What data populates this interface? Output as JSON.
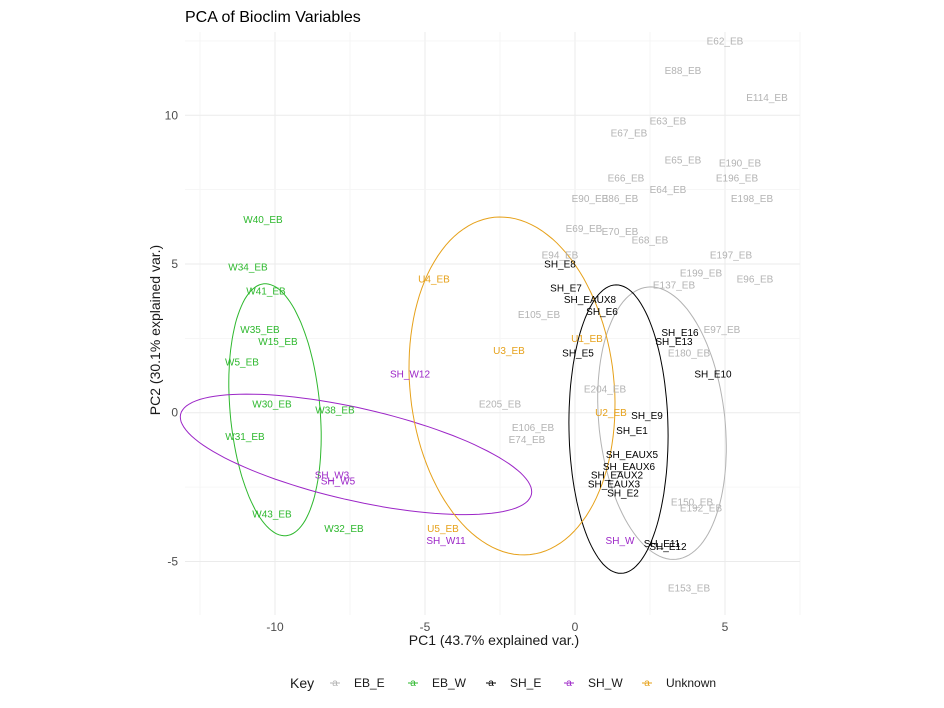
{
  "chart_data": {
    "type": "scatter",
    "title": "PCA of Bioclim Variables",
    "xlabel": "PC1 (43.7% explained var.)",
    "ylabel": "PC2 (30.1% explained var.)",
    "xlim": [
      -13,
      7.5
    ],
    "ylim": [
      -6.8,
      12.8
    ],
    "x_ticks": [
      -10,
      -5,
      0,
      5
    ],
    "y_ticks": [
      -5,
      0,
      5,
      10
    ],
    "grid": true,
    "legend": {
      "title": "Key",
      "position": "bottom",
      "entries": [
        {
          "name": "EB_E",
          "color": "#b3b3b3"
        },
        {
          "name": "EB_W",
          "color": "#2eb82e"
        },
        {
          "name": "SH_E",
          "color": "#000000"
        },
        {
          "name": "SH_W",
          "color": "#9c26c7"
        },
        {
          "name": "Unknown",
          "color": "#e6a11a"
        }
      ]
    },
    "ellipses": [
      {
        "group": "EB_E",
        "cx": 2.9,
        "cy": -0.35,
        "rx": 4.6,
        "ry": 2.1,
        "angle_deg": -84
      },
      {
        "group": "EB_W",
        "cx": -10.0,
        "cy": 0.1,
        "rx": 4.25,
        "ry": 1.5,
        "angle_deg": -85
      },
      {
        "group": "SH_E",
        "cx": 1.45,
        "cy": -0.55,
        "rx": 4.85,
        "ry": 1.65,
        "angle_deg": -89
      },
      {
        "group": "SH_W",
        "cx": -7.3,
        "cy": -1.4,
        "rx": 6.0,
        "ry": 1.55,
        "angle_deg": -13
      },
      {
        "group": "Unknown",
        "cx": -2.1,
        "cy": 0.9,
        "rx": 5.7,
        "ry": 3.4,
        "angle_deg": -84
      }
    ],
    "series": [
      {
        "name": "EB_E",
        "points": [
          {
            "label": "E62_EB",
            "x": 5.0,
            "y": 12.5
          },
          {
            "label": "E88_EB",
            "x": 3.6,
            "y": 11.5
          },
          {
            "label": "E114_EB",
            "x": 6.4,
            "y": 10.6
          },
          {
            "label": "E63_EB",
            "x": 3.1,
            "y": 9.8
          },
          {
            "label": "E67_EB",
            "x": 1.8,
            "y": 9.4
          },
          {
            "label": "E65_EB",
            "x": 3.6,
            "y": 8.5
          },
          {
            "label": "E190_EB",
            "x": 5.5,
            "y": 8.4
          },
          {
            "label": "E66_EB",
            "x": 1.7,
            "y": 7.9
          },
          {
            "label": "E196_EB",
            "x": 5.4,
            "y": 7.9
          },
          {
            "label": "E64_EB",
            "x": 3.1,
            "y": 7.5
          },
          {
            "label": "E90_EB",
            "x": 0.5,
            "y": 7.2
          },
          {
            "label": "E86_EB",
            "x": 1.5,
            "y": 7.2
          },
          {
            "label": "E198_EB",
            "x": 5.9,
            "y": 7.2
          },
          {
            "label": "E69_EB",
            "x": 0.3,
            "y": 6.2
          },
          {
            "label": "E70_EB",
            "x": 1.5,
            "y": 6.1
          },
          {
            "label": "E68_EB",
            "x": 2.5,
            "y": 5.8
          },
          {
            "label": "E94_EB",
            "x": -0.5,
            "y": 5.3
          },
          {
            "label": "E197_EB",
            "x": 5.2,
            "y": 5.3
          },
          {
            "label": "E199_EB",
            "x": 4.2,
            "y": 4.7
          },
          {
            "label": "E96_EB",
            "x": 6.0,
            "y": 4.5
          },
          {
            "label": "E137_EB",
            "x": 3.3,
            "y": 4.3
          },
          {
            "label": "E105_EB",
            "x": -1.2,
            "y": 3.3
          },
          {
            "label": "E97_EB",
            "x": 4.9,
            "y": 2.8
          },
          {
            "label": "E180_EB",
            "x": 3.8,
            "y": 2.0
          },
          {
            "label": "E204_EB",
            "x": 1.0,
            "y": 0.8
          },
          {
            "label": "E205_EB",
            "x": -2.5,
            "y": 0.3
          },
          {
            "label": "E106_EB",
            "x": -1.4,
            "y": -0.5
          },
          {
            "label": "E74_EB",
            "x": -1.6,
            "y": -0.9
          },
          {
            "label": "E150_EB",
            "x": 3.9,
            "y": -3.0
          },
          {
            "label": "E192_EB",
            "x": 4.2,
            "y": -3.2
          },
          {
            "label": "E153_EB",
            "x": 3.8,
            "y": -5.9
          }
        ]
      },
      {
        "name": "EB_W",
        "points": [
          {
            "label": "W40_EB",
            "x": -10.4,
            "y": 6.5
          },
          {
            "label": "W34_EB",
            "x": -10.9,
            "y": 4.9
          },
          {
            "label": "W41_EB",
            "x": -10.3,
            "y": 4.1
          },
          {
            "label": "W35_EB",
            "x": -10.5,
            "y": 2.8
          },
          {
            "label": "W15_EB",
            "x": -9.9,
            "y": 2.4
          },
          {
            "label": "W5_EB",
            "x": -11.1,
            "y": 1.7
          },
          {
            "label": "W38_EB",
            "x": -8.0,
            "y": 0.1
          },
          {
            "label": "W30_EB",
            "x": -10.1,
            "y": 0.3
          },
          {
            "label": "W31_EB",
            "x": -11.0,
            "y": -0.8
          },
          {
            "label": "W43_EB",
            "x": -10.1,
            "y": -3.4
          },
          {
            "label": "W32_EB",
            "x": -7.7,
            "y": -3.9
          }
        ]
      },
      {
        "name": "SH_E",
        "points": [
          {
            "label": "SH_E8",
            "x": -0.5,
            "y": 5.0
          },
          {
            "label": "SH_E7",
            "x": -0.3,
            "y": 4.2
          },
          {
            "label": "SH_EAUX8",
            "x": 0.5,
            "y": 3.8
          },
          {
            "label": "SH_E6",
            "x": 0.9,
            "y": 3.4
          },
          {
            "label": "SH_E16",
            "x": 3.5,
            "y": 2.7
          },
          {
            "label": "SH_E13",
            "x": 3.3,
            "y": 2.4
          },
          {
            "label": "SH_E5",
            "x": 0.1,
            "y": 2.0
          },
          {
            "label": "SH_E10",
            "x": 4.6,
            "y": 1.3
          },
          {
            "label": "SH_E9",
            "x": 2.4,
            "y": -0.1
          },
          {
            "label": "SH_E1",
            "x": 1.9,
            "y": -0.6
          },
          {
            "label": "SH_EAUX5",
            "x": 1.9,
            "y": -1.4
          },
          {
            "label": "SH_EAUX6",
            "x": 1.8,
            "y": -1.8
          },
          {
            "label": "SH_EAUX2",
            "x": 1.4,
            "y": -2.1
          },
          {
            "label": "SH_EAUX3",
            "x": 1.3,
            "y": -2.4
          },
          {
            "label": "SH_E2",
            "x": 1.6,
            "y": -2.7
          },
          {
            "label": "SH_E11",
            "x": 2.9,
            "y": -4.4
          },
          {
            "label": "SH_E12",
            "x": 3.1,
            "y": -4.5
          }
        ]
      },
      {
        "name": "SH_W",
        "points": [
          {
            "label": "SH_W12",
            "x": -5.5,
            "y": 1.3
          },
          {
            "label": "SH_W3",
            "x": -8.1,
            "y": -2.1
          },
          {
            "label": "SH_W5",
            "x": -7.9,
            "y": -2.3
          },
          {
            "label": "SH_W11",
            "x": -4.3,
            "y": -4.3
          },
          {
            "label": "SH_W",
            "x": 1.5,
            "y": -4.3
          }
        ]
      },
      {
        "name": "Unknown",
        "points": [
          {
            "label": "U4_EB",
            "x": -4.7,
            "y": 4.5
          },
          {
            "label": "U3_EB",
            "x": -2.2,
            "y": 2.1
          },
          {
            "label": "U1_EB",
            "x": 0.4,
            "y": 2.5
          },
          {
            "label": "U2_EB",
            "x": 1.2,
            "y": 0.0
          },
          {
            "label": "U5_EB",
            "x": -4.4,
            "y": -3.9
          }
        ]
      }
    ]
  }
}
